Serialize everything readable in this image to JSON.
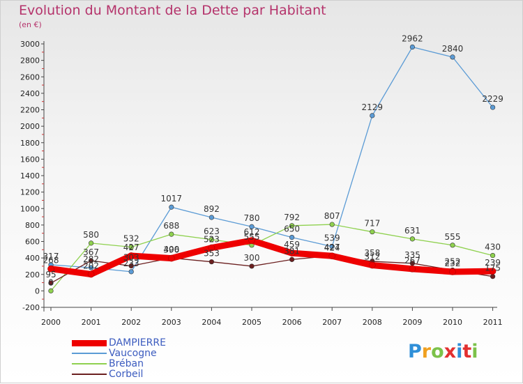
{
  "title": "Evolution du Montant de la Dette par Habitant",
  "unit": "(en €)",
  "logo": {
    "text": "Proxiti",
    "colors": [
      "#2f8fd8",
      "#f0a020",
      "#7cc24a",
      "#e23030",
      "#2f8fd8",
      "#e23030",
      "#7cc24a"
    ]
  },
  "chart_data": {
    "type": "line",
    "title": "Evolution du Montant de la Dette par Habitant",
    "ylabel": "(en €)",
    "xlabel": "",
    "categories": [
      "2000",
      "2001",
      "2002",
      "2003",
      "2004",
      "2005",
      "2006",
      "2007",
      "2008",
      "2009",
      "2010",
      "2011"
    ],
    "ylim": [
      -200,
      3000
    ],
    "yticks": [
      -200,
      0,
      200,
      400,
      600,
      800,
      1000,
      1200,
      1400,
      1600,
      1800,
      2000,
      2200,
      2400,
      2600,
      2800,
      3000
    ],
    "grid": false,
    "legend": "bottom-left",
    "series": [
      {
        "name": "DAMPIERRE",
        "color": "#ee0000",
        "values": [
          268,
          202,
          427,
          396,
          523,
          612,
          459,
          424,
          312,
          267,
          232,
          239
        ]
      },
      {
        "name": "Vaucogne",
        "color": "#5b9bd5",
        "values": [
          317,
          282,
          233,
          1017,
          892,
          780,
          650,
          539,
          2129,
          2962,
          2840,
          2229
        ]
      },
      {
        "name": "Bréban",
        "color": "#8fd14f",
        "values": [
          0,
          580,
          532,
          688,
          623,
          555,
          792,
          807,
          717,
          631,
          555,
          430
        ]
      },
      {
        "name": "Corbeil",
        "color": "#6b1f1f",
        "values": [
          95,
          367,
          303,
          400,
          353,
          300,
          381,
          427,
          358,
          335,
          252,
          175
        ]
      }
    ]
  }
}
